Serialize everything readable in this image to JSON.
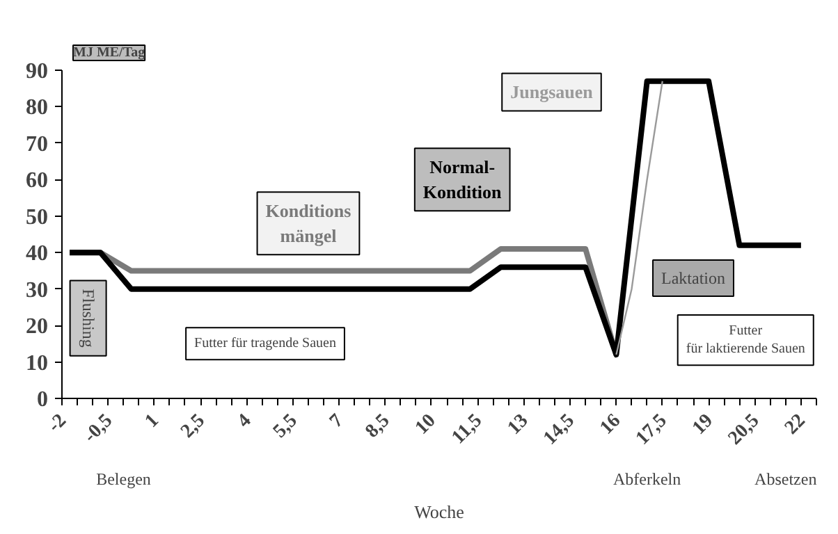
{
  "chart_data": {
    "type": "line",
    "ylabel": "MJ ME/Tag",
    "xlabel": "Woche",
    "xlim": [
      -2,
      22.5
    ],
    "ylim": [
      0,
      90
    ],
    "yticks": [
      0,
      10,
      20,
      30,
      40,
      50,
      60,
      70,
      80,
      90
    ],
    "xticks": [
      {
        "value": -2,
        "label": "-2"
      },
      {
        "value": -1.5,
        "label": null
      },
      {
        "value": -1,
        "label": null
      },
      {
        "value": -0.5,
        "label": "-0,5"
      },
      {
        "value": 0,
        "label": null
      },
      {
        "value": 0.5,
        "label": null
      },
      {
        "value": 1,
        "label": "1"
      },
      {
        "value": 1.5,
        "label": null
      },
      {
        "value": 2,
        "label": null
      },
      {
        "value": 2.5,
        "label": "2,5"
      },
      {
        "value": 3,
        "label": null
      },
      {
        "value": 3.5,
        "label": null
      },
      {
        "value": 4,
        "label": "4"
      },
      {
        "value": 4.5,
        "label": null
      },
      {
        "value": 5,
        "label": null
      },
      {
        "value": 5.5,
        "label": "5,5"
      },
      {
        "value": 6,
        "label": null
      },
      {
        "value": 6.5,
        "label": null
      },
      {
        "value": 7,
        "label": "7"
      },
      {
        "value": 7.5,
        "label": null
      },
      {
        "value": 8,
        "label": null
      },
      {
        "value": 8.5,
        "label": "8,5"
      },
      {
        "value": 9,
        "label": null
      },
      {
        "value": 9.5,
        "label": null
      },
      {
        "value": 10,
        "label": "10"
      },
      {
        "value": 10.5,
        "label": null
      },
      {
        "value": 11,
        "label": null
      },
      {
        "value": 11.5,
        "label": "11,5"
      },
      {
        "value": 12,
        "label": null
      },
      {
        "value": 12.5,
        "label": null
      },
      {
        "value": 13,
        "label": "13"
      },
      {
        "value": 13.5,
        "label": null
      },
      {
        "value": 14,
        "label": null
      },
      {
        "value": 14.5,
        "label": "14,5"
      },
      {
        "value": 15,
        "label": null
      },
      {
        "value": 15.5,
        "label": null
      },
      {
        "value": 16,
        "label": "16"
      },
      {
        "value": 16.5,
        "label": null
      },
      {
        "value": 17,
        "label": null
      },
      {
        "value": 17.5,
        "label": "17,5"
      },
      {
        "value": 18,
        "label": null
      },
      {
        "value": 18.5,
        "label": null
      },
      {
        "value": 19,
        "label": "19"
      },
      {
        "value": 19.5,
        "label": null
      },
      {
        "value": 20,
        "label": null
      },
      {
        "value": 20.5,
        "label": "20,5"
      },
      {
        "value": 21,
        "label": null
      },
      {
        "value": 21.5,
        "label": null
      },
      {
        "value": 22,
        "label": "22"
      },
      {
        "value": 22.5,
        "label": null
      }
    ],
    "grid": false,
    "legend": false,
    "marker": "none",
    "line_style": "solid",
    "series": [
      {
        "name": "Konditions\nmängel",
        "color": "#7a7a7a",
        "x": [
          -1.75,
          -0.75,
          0.25,
          11.25,
          12.25,
          15,
          16
        ],
        "values": [
          40,
          40,
          35,
          35,
          41,
          41,
          12
        ]
      },
      {
        "name": "Normal-\nKondition",
        "color": "#000000",
        "x": [
          -1.75,
          -0.75,
          0.25,
          11.25,
          12.25,
          15,
          16,
          17,
          19,
          20,
          22
        ],
        "values": [
          40,
          40,
          30,
          30,
          36,
          36,
          12,
          87,
          87,
          42,
          42
        ]
      },
      {
        "name": "Jungsauen",
        "color": "#9a9a9a",
        "x": [
          16,
          16.5,
          17,
          17.5
        ],
        "values": [
          12,
          30,
          60,
          87
        ]
      }
    ],
    "annotations": [
      "Flushing",
      "Futter für tragende Sauen",
      "Laktation",
      "Futter\nfür laktierende Sauen",
      "Belegen",
      "Abferkeln",
      "Absetzen"
    ]
  }
}
